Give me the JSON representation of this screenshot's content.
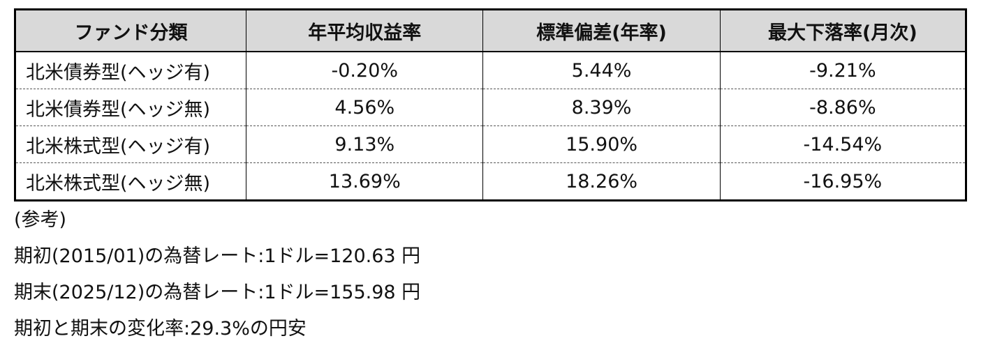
{
  "table": {
    "header": [
      "ファンド分類",
      "年平均収益率",
      "標準偏差(年率)",
      "最大下落率(月次)"
    ],
    "rows": [
      [
        "北米債券型(ヘッジ有)",
        "-0.20%",
        "5.44%",
        "-9.21%"
      ],
      [
        "北米債券型(ヘッジ無)",
        "4.56%",
        "8.39%",
        "-8.86%"
      ],
      [
        "北米株式型(ヘッジ有)",
        "9.13%",
        "15.90%",
        "-14.54%"
      ],
      [
        "北米株式型(ヘッジ無)",
        "13.69%",
        "18.26%",
        "-16.95%"
      ]
    ]
  },
  "notes": [
    "(参考)",
    "期初(2015/01)の為替レート:1ドル=120.63 円",
    "期末(2025/12)の為替レート:1ドル=155.98 円",
    "期初と期末の変化率:29.3%の円安"
  ]
}
